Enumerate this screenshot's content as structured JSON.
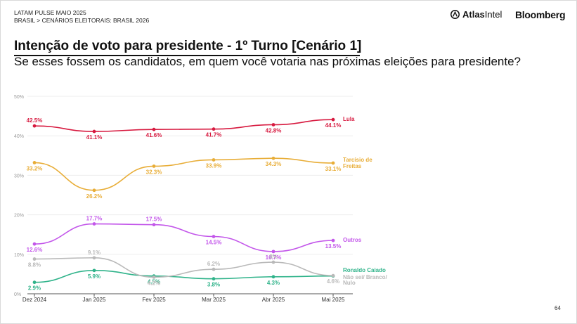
{
  "header": {
    "line1": "LATAM PULSE MAIO 2025",
    "line2": "BRASIL > CENÁRIOS ELEITORAIS: BRASIL 2026",
    "logo_atlas_bold": "Atlas",
    "logo_atlas_light": "Intel",
    "logo_bloomberg": "Bloomberg"
  },
  "page": {
    "title": "Intenção de voto para presidente - 1º Turno [Cenário 1]",
    "subtitle": "Se esses fossem os candidatos, em quem você votaria nas próximas eleições para presidente?",
    "page_number": "64"
  },
  "chart_data": {
    "type": "line",
    "title": "Intenção de voto para presidente - 1º Turno [Cenário 1]",
    "categories": [
      "Dez 2024",
      "Jan 2025",
      "Fev 2025",
      "Mar 2025",
      "Abr 2025",
      "Mai 2025"
    ],
    "y_ticks": [
      "0%",
      "10%",
      "20%",
      "30%",
      "40%",
      "50%"
    ],
    "ylim": [
      0,
      50
    ],
    "grid": true,
    "series": [
      {
        "name": "Lula",
        "color": "#d7193f",
        "values": [
          42.5,
          41.1,
          41.6,
          41.7,
          42.8,
          44.1
        ],
        "labels": [
          "42.5%",
          "41.1%",
          "41.6%",
          "41.7%",
          "42.8%",
          "44.1%"
        ]
      },
      {
        "name": "Tarcísio de Freitas",
        "color": "#e8ad37",
        "values": [
          33.2,
          26.2,
          32.3,
          33.9,
          34.3,
          33.1
        ],
        "labels": [
          "33.2%",
          "26.2%",
          "32.3%",
          "33.9%",
          "34.3%",
          "33.1%"
        ]
      },
      {
        "name": "Outros",
        "color": "#c357ea",
        "values": [
          12.6,
          17.7,
          17.5,
          14.5,
          10.7,
          13.5
        ],
        "labels": [
          "12.6%",
          "17.7%",
          "17.5%",
          "14.5%",
          "10.7%",
          "13.5%"
        ]
      },
      {
        "name": "Ronaldo Caiado",
        "color": "#2fb38a",
        "values": [
          2.9,
          5.9,
          4.5,
          3.8,
          4.3,
          4.5
        ],
        "labels": [
          "2.9%",
          "5.9%",
          "4.5%",
          "3.8%",
          "4.3%",
          ""
        ]
      },
      {
        "name": "Não sei/ Branco/ Nulo",
        "color": "#b9b9b9",
        "values": [
          8.8,
          9.1,
          4.2,
          6.2,
          8.0,
          4.6
        ],
        "labels": [
          "8.8%",
          "9.1%",
          "4.2%",
          "6.2%",
          "8%",
          "4.6%"
        ]
      }
    ]
  }
}
